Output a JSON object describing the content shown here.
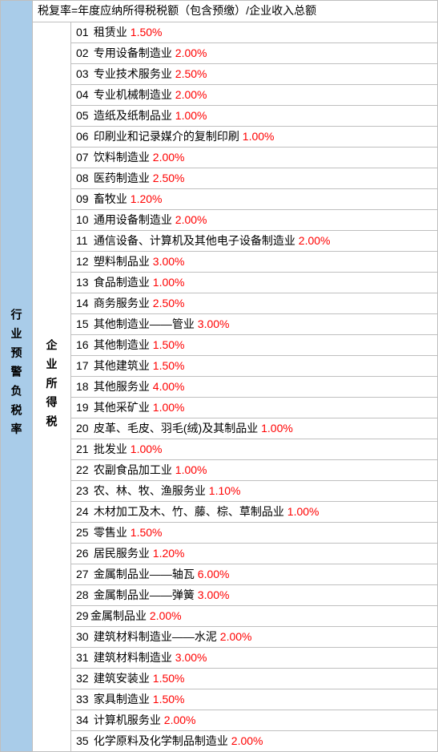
{
  "leftLabel": "行业预警负税率",
  "midLabel": "企业所得税",
  "header": "税复率=年度应纳所得税税额（包含预缴）/企业收入总额",
  "rateColor": "#ff0000",
  "rows": [
    {
      "no": "01",
      "name": "租赁业",
      "rate": "1.50%"
    },
    {
      "no": "02",
      "name": "专用设备制造业",
      "rate": "2.00%"
    },
    {
      "no": "03",
      "name": "专业技术服务业",
      "rate": "2.50%"
    },
    {
      "no": "04",
      "name": "专业机械制造业",
      "rate": "2.00%"
    },
    {
      "no": "05",
      "name": "造纸及纸制品业",
      "rate": "1.00%"
    },
    {
      "no": "06",
      "name": "印刷业和记录媒介的复制印刷",
      "rate": "1.00%"
    },
    {
      "no": "07",
      "name": "饮料制造业",
      "rate": "2.00%"
    },
    {
      "no": "08",
      "name": "医药制造业",
      "rate": "2.50%"
    },
    {
      "no": "09",
      "name": "畜牧业",
      "rate": "1.20%"
    },
    {
      "no": "10",
      "name": "通用设备制造业",
      "rate": "2.00%"
    },
    {
      "no": "11",
      "name": "通信设备、计算机及其他电子设备制造业",
      "rate": "2.00%"
    },
    {
      "no": "12",
      "name": "塑料制品业",
      "rate": "3.00%"
    },
    {
      "no": "13",
      "name": "食品制造业",
      "rate": "1.00%"
    },
    {
      "no": "14",
      "name": "商务服务业",
      "rate": "2.50%"
    },
    {
      "no": "15",
      "name": "其他制造业——管业",
      "rate": "3.00%"
    },
    {
      "no": "16",
      "name": "其他制造业",
      "rate": "1.50%"
    },
    {
      "no": "17",
      "name": "其他建筑业",
      "rate": "1.50%"
    },
    {
      "no": "18",
      "name": "其他服务业",
      "rate": "4.00%"
    },
    {
      "no": "19",
      "name": "其他采矿业",
      "rate": "1.00%"
    },
    {
      "no": "20",
      "name": "皮革、毛皮、羽毛(绒)及其制品业",
      "rate": "1.00%"
    },
    {
      "no": "21",
      "name": "批发业",
      "rate": "1.00%"
    },
    {
      "no": "22",
      "name": "农副食品加工业",
      "rate": "1.00%"
    },
    {
      "no": "23",
      "name": "农、林、牧、渔服务业",
      "rate": "1.10%"
    },
    {
      "no": "24",
      "name": "木材加工及木、竹、藤、棕、草制品业",
      "rate": "1.00%"
    },
    {
      "no": "25",
      "name": "零售业",
      "rate": "1.50%"
    },
    {
      "no": "26",
      "name": "居民服务业",
      "rate": "1.20%"
    },
    {
      "no": "27",
      "name": "金属制品业——轴瓦",
      "rate": "6.00%"
    },
    {
      "no": "28",
      "name": "金属制品业——弹簧",
      "rate": "3.00%"
    },
    {
      "no": "29",
      "name": "金属制品业",
      "rate": "2.00%",
      "noSpaceAfterNo": true
    },
    {
      "no": "30",
      "name": "建筑材料制造业——水泥",
      "rate": "2.00%"
    },
    {
      "no": "31",
      "name": "建筑材料制造业",
      "rate": "3.00%"
    },
    {
      "no": "32",
      "name": "建筑安装业",
      "rate": "1.50%"
    },
    {
      "no": "33",
      "name": "家具制造业",
      "rate": "1.50%"
    },
    {
      "no": "34",
      "name": "计算机服务业",
      "rate": "2.00%"
    },
    {
      "no": "35",
      "name": "化学原料及化学制品制造业",
      "rate": "2.00%"
    }
  ]
}
